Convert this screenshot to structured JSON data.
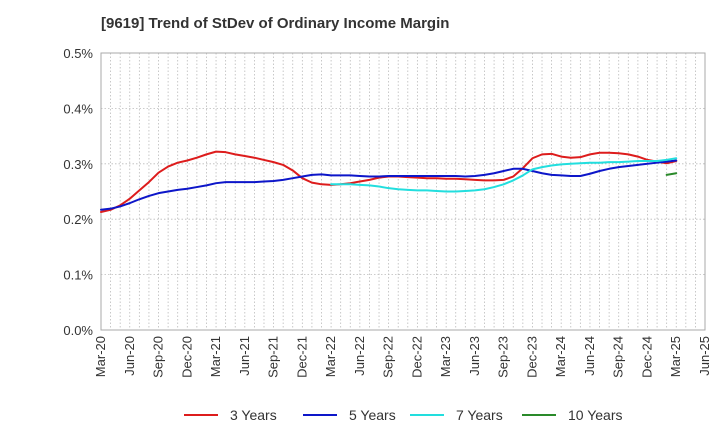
{
  "chart_data": {
    "type": "line",
    "title": "[9619]  Trend of StDev of Ordinary Income Margin",
    "xlabel": "",
    "ylabel": "",
    "x_tick_labels": [
      "Mar-20",
      "Jun-20",
      "Sep-20",
      "Dec-20",
      "Mar-21",
      "Jun-21",
      "Sep-21",
      "Dec-21",
      "Mar-22",
      "Jun-22",
      "Sep-22",
      "Dec-22",
      "Mar-23",
      "Jun-23",
      "Sep-23",
      "Dec-23",
      "Mar-24",
      "Jun-24",
      "Sep-24",
      "Dec-24",
      "Mar-25",
      "Jun-25"
    ],
    "y_tick_labels": [
      "0.0%",
      "0.1%",
      "0.2%",
      "0.3%",
      "0.4%",
      "0.5%"
    ],
    "ylim": [
      0,
      0.5
    ],
    "grid": true,
    "legend_position": "bottom",
    "series": [
      {
        "name": "3 Years",
        "color": "#dd1c1c",
        "x": [
          "Mar-20",
          "Apr-20",
          "May-20",
          "Jun-20",
          "Jul-20",
          "Aug-20",
          "Sep-20",
          "Oct-20",
          "Nov-20",
          "Dec-20",
          "Jan-21",
          "Feb-21",
          "Mar-21",
          "Apr-21",
          "May-21",
          "Jun-21",
          "Jul-21",
          "Aug-21",
          "Sep-21",
          "Oct-21",
          "Nov-21",
          "Dec-21",
          "Jan-22",
          "Feb-22",
          "Mar-22",
          "Apr-22",
          "May-22",
          "Jun-22",
          "Jul-22",
          "Aug-22",
          "Sep-22",
          "Oct-22",
          "Nov-22",
          "Dec-22",
          "Jan-23",
          "Feb-23",
          "Mar-23",
          "Apr-23",
          "May-23",
          "Jun-23",
          "Jul-23",
          "Aug-23",
          "Sep-23",
          "Oct-23",
          "Nov-23",
          "Dec-23",
          "Jan-24",
          "Feb-24",
          "Mar-24",
          "Apr-24",
          "May-24",
          "Jun-24",
          "Jul-24",
          "Aug-24",
          "Sep-24",
          "Oct-24",
          "Nov-24",
          "Dec-24",
          "Jan-25",
          "Feb-25",
          "Mar-25"
        ],
        "values": [
          0.213,
          0.217,
          0.225,
          0.237,
          0.252,
          0.267,
          0.284,
          0.295,
          0.302,
          0.306,
          0.311,
          0.317,
          0.322,
          0.321,
          0.317,
          0.314,
          0.311,
          0.307,
          0.303,
          0.298,
          0.288,
          0.274,
          0.266,
          0.263,
          0.262,
          0.263,
          0.265,
          0.268,
          0.271,
          0.275,
          0.277,
          0.277,
          0.276,
          0.275,
          0.274,
          0.274,
          0.273,
          0.273,
          0.272,
          0.271,
          0.27,
          0.27,
          0.271,
          0.277,
          0.292,
          0.31,
          0.317,
          0.318,
          0.313,
          0.311,
          0.312,
          0.317,
          0.32,
          0.32,
          0.319,
          0.317,
          0.313,
          0.307,
          0.304,
          0.301,
          0.305
        ]
      },
      {
        "name": "5 Years",
        "color": "#0d16c9",
        "x": [
          "Mar-20",
          "Apr-20",
          "May-20",
          "Jun-20",
          "Jul-20",
          "Aug-20",
          "Sep-20",
          "Oct-20",
          "Nov-20",
          "Dec-20",
          "Jan-21",
          "Feb-21",
          "Mar-21",
          "Apr-21",
          "May-21",
          "Jun-21",
          "Jul-21",
          "Aug-21",
          "Sep-21",
          "Oct-21",
          "Nov-21",
          "Dec-21",
          "Jan-22",
          "Feb-22",
          "Mar-22",
          "Apr-22",
          "May-22",
          "Jun-22",
          "Jul-22",
          "Aug-22",
          "Sep-22",
          "Oct-22",
          "Nov-22",
          "Dec-22",
          "Jan-23",
          "Feb-23",
          "Mar-23",
          "Apr-23",
          "May-23",
          "Jun-23",
          "Jul-23",
          "Aug-23",
          "Sep-23",
          "Oct-23",
          "Nov-23",
          "Dec-23",
          "Jan-24",
          "Feb-24",
          "Mar-24",
          "Apr-24",
          "May-24",
          "Jun-24",
          "Jul-24",
          "Aug-24",
          "Sep-24",
          "Oct-24",
          "Nov-24",
          "Dec-24",
          "Jan-25",
          "Feb-25",
          "Mar-25"
        ],
        "values": [
          0.217,
          0.219,
          0.223,
          0.229,
          0.236,
          0.242,
          0.247,
          0.25,
          0.253,
          0.255,
          0.258,
          0.261,
          0.265,
          0.267,
          0.267,
          0.267,
          0.267,
          0.268,
          0.269,
          0.271,
          0.274,
          0.277,
          0.28,
          0.281,
          0.279,
          0.279,
          0.279,
          0.278,
          0.277,
          0.277,
          0.278,
          0.278,
          0.278,
          0.278,
          0.278,
          0.278,
          0.278,
          0.278,
          0.277,
          0.278,
          0.28,
          0.283,
          0.287,
          0.291,
          0.291,
          0.287,
          0.283,
          0.28,
          0.279,
          0.278,
          0.278,
          0.282,
          0.287,
          0.291,
          0.294,
          0.296,
          0.298,
          0.3,
          0.302,
          0.304,
          0.306
        ]
      },
      {
        "name": "7 Years",
        "color": "#22dede",
        "x": [
          "Mar-22",
          "Apr-22",
          "May-22",
          "Jun-22",
          "Jul-22",
          "Aug-22",
          "Sep-22",
          "Oct-22",
          "Nov-22",
          "Dec-22",
          "Jan-23",
          "Feb-23",
          "Mar-23",
          "Apr-23",
          "May-23",
          "Jun-23",
          "Jul-23",
          "Aug-23",
          "Sep-23",
          "Oct-23",
          "Nov-23",
          "Dec-23",
          "Jan-24",
          "Feb-24",
          "Mar-24",
          "Apr-24",
          "May-24",
          "Jun-24",
          "Jul-24",
          "Aug-24",
          "Sep-24",
          "Oct-24",
          "Nov-24",
          "Dec-24",
          "Jan-25",
          "Feb-25",
          "Mar-25"
        ],
        "values": [
          0.263,
          0.263,
          0.263,
          0.262,
          0.261,
          0.259,
          0.256,
          0.254,
          0.253,
          0.252,
          0.252,
          0.251,
          0.25,
          0.25,
          0.251,
          0.252,
          0.254,
          0.258,
          0.263,
          0.27,
          0.279,
          0.29,
          0.294,
          0.297,
          0.299,
          0.3,
          0.301,
          0.302,
          0.302,
          0.303,
          0.303,
          0.304,
          0.305,
          0.305,
          0.305,
          0.307,
          0.31
        ]
      },
      {
        "name": "10 Years",
        "color": "#2a8a2a",
        "x": [
          "Feb-25",
          "Mar-25"
        ],
        "values": [
          0.28,
          0.283
        ]
      }
    ]
  }
}
